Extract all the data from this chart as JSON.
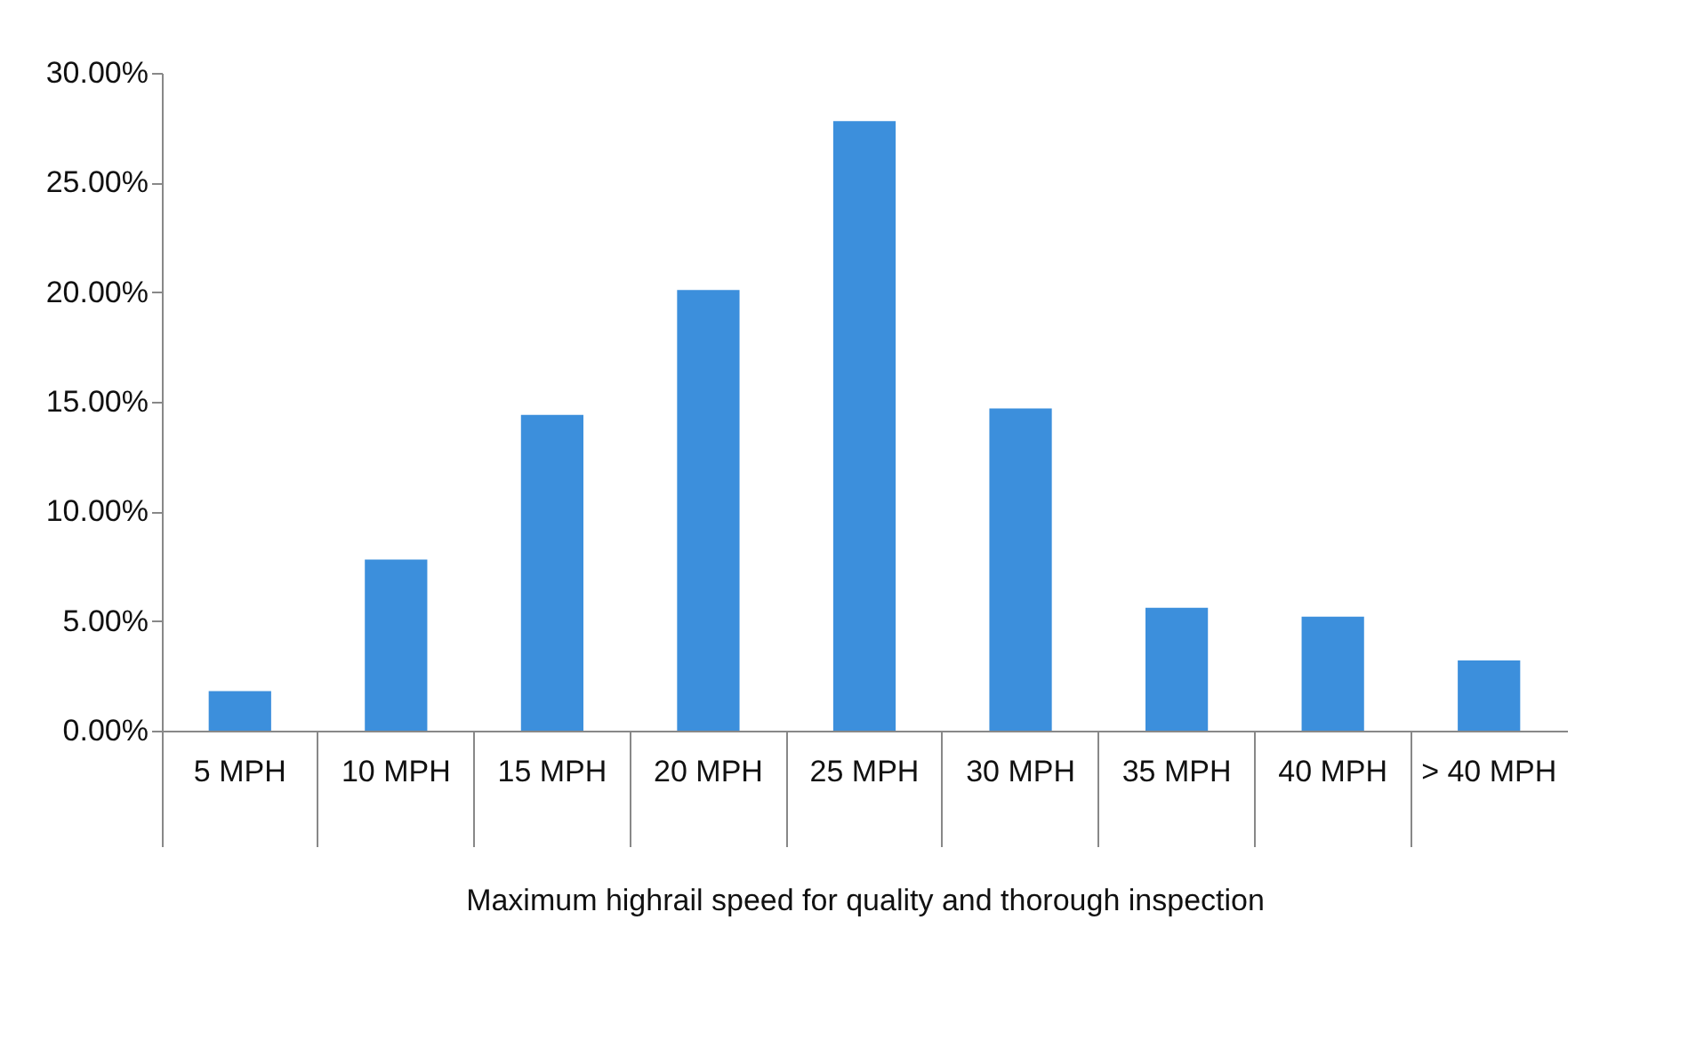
{
  "chart_data": {
    "type": "bar",
    "xlabel": "Maximum highrail speed for quality and thorough inspection",
    "categories": [
      "5 MPH",
      "10 MPH",
      "15 MPH",
      "20 MPH",
      "25 MPH",
      "30 MPH",
      "35 MPH",
      "40 MPH",
      "> 40 MPH"
    ],
    "values": [
      1.8,
      7.8,
      14.4,
      20.1,
      27.8,
      14.7,
      5.6,
      5.2,
      3.2
    ],
    "color": "#3c8fdc",
    "ylim": [
      0,
      30
    ],
    "yticks": [
      {
        "value": 0,
        "label": "0.00%"
      },
      {
        "value": 5,
        "label": "5.00%"
      },
      {
        "value": 10,
        "label": "10.00%"
      },
      {
        "value": 15,
        "label": "15.00%"
      },
      {
        "value": 20,
        "label": "20.00%"
      },
      {
        "value": 25,
        "label": "25.00%"
      },
      {
        "value": 30,
        "label": "30.00%"
      }
    ],
    "grid": false
  }
}
